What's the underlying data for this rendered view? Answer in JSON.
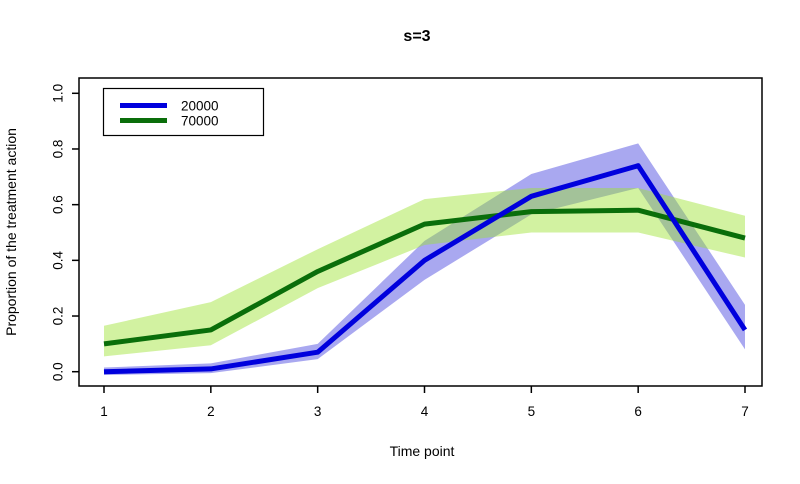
{
  "chart_data": {
    "type": "line",
    "title": "s=3",
    "xlabel": "Time point",
    "ylabel": "Proportion of the treatment action",
    "x": [
      1,
      2,
      3,
      4,
      5,
      6,
      7
    ],
    "xtick_labels": [
      "1",
      "2",
      "3",
      "4",
      "5",
      "6",
      "7"
    ],
    "ylim": [
      0,
      1
    ],
    "ytick_values": [
      0.0,
      0.2,
      0.4,
      0.6,
      0.8,
      1.0
    ],
    "ytick_labels": [
      "0.0",
      "0.2",
      "0.4",
      "0.6",
      "0.8",
      "1.0"
    ],
    "grid": false,
    "legend_position": "top-left",
    "background_color": "#ffffff",
    "axis_color": "#000000",
    "series": [
      {
        "name": "20000",
        "color": "#0000dd",
        "band_fill": "#a9a8f0",
        "band_opacity": 1,
        "values": [
          0.0,
          0.01,
          0.07,
          0.4,
          0.63,
          0.74,
          0.15
        ],
        "lower": [
          -0.012,
          -0.005,
          0.045,
          0.33,
          0.565,
          0.66,
          0.08
        ],
        "upper": [
          0.015,
          0.03,
          0.1,
          0.47,
          0.71,
          0.82,
          0.24
        ]
      },
      {
        "name": "70000",
        "color": "#0a6e0a",
        "band_fill": "#9ce32e",
        "band_opacity": 0.45,
        "values": [
          0.1,
          0.15,
          0.36,
          0.53,
          0.575,
          0.58,
          0.48
        ],
        "lower": [
          0.055,
          0.095,
          0.3,
          0.455,
          0.5,
          0.5,
          0.41
        ],
        "upper": [
          0.165,
          0.25,
          0.44,
          0.62,
          0.66,
          0.66,
          0.56
        ]
      }
    ]
  }
}
